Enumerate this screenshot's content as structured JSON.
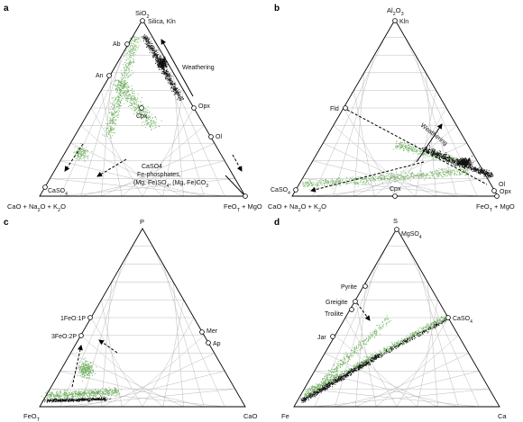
{
  "panels": [
    {
      "letter": "a",
      "vertices": {
        "top": "SiO2",
        "left": "CaO + Na2O + K2O",
        "right": "FeOT + MgO"
      },
      "points": [
        "Silica, Kln",
        "Ab",
        "An",
        "Cpx",
        "Opx",
        "Ol",
        "CaSO4",
        "Fe-phosphates,",
        "Fe-oxides, Fe-sulfides",
        "(Mg, Fe)SO4, (Mg, Fe)CO3"
      ],
      "annotation": "Weathering"
    },
    {
      "letter": "b",
      "vertices": {
        "top": "Al2O3",
        "left": "CaO + Na2O + K2O",
        "right": "FeOT + MgO"
      },
      "points": [
        "Kln",
        "Fld",
        "CaSO4",
        "Cpx",
        "Ol",
        "Opx"
      ],
      "annotation": "Weathering"
    },
    {
      "letter": "c",
      "vertices": {
        "top": "P",
        "left": "FeOT",
        "right": "CaO"
      },
      "points": [
        "1FeO:1P",
        "3FeO:2P",
        "Mer",
        "Ap"
      ]
    },
    {
      "letter": "d",
      "vertices": {
        "top": "S",
        "left": "Fe",
        "right": "Ca"
      },
      "points": [
        "MgSO4",
        "Pyrite",
        "Greigite",
        "Troilite",
        "Jar",
        "CaSO4"
      ]
    }
  ],
  "colors": {
    "green": "#6fae5f",
    "black": "#111111",
    "grid": "#b3b3b3"
  }
}
